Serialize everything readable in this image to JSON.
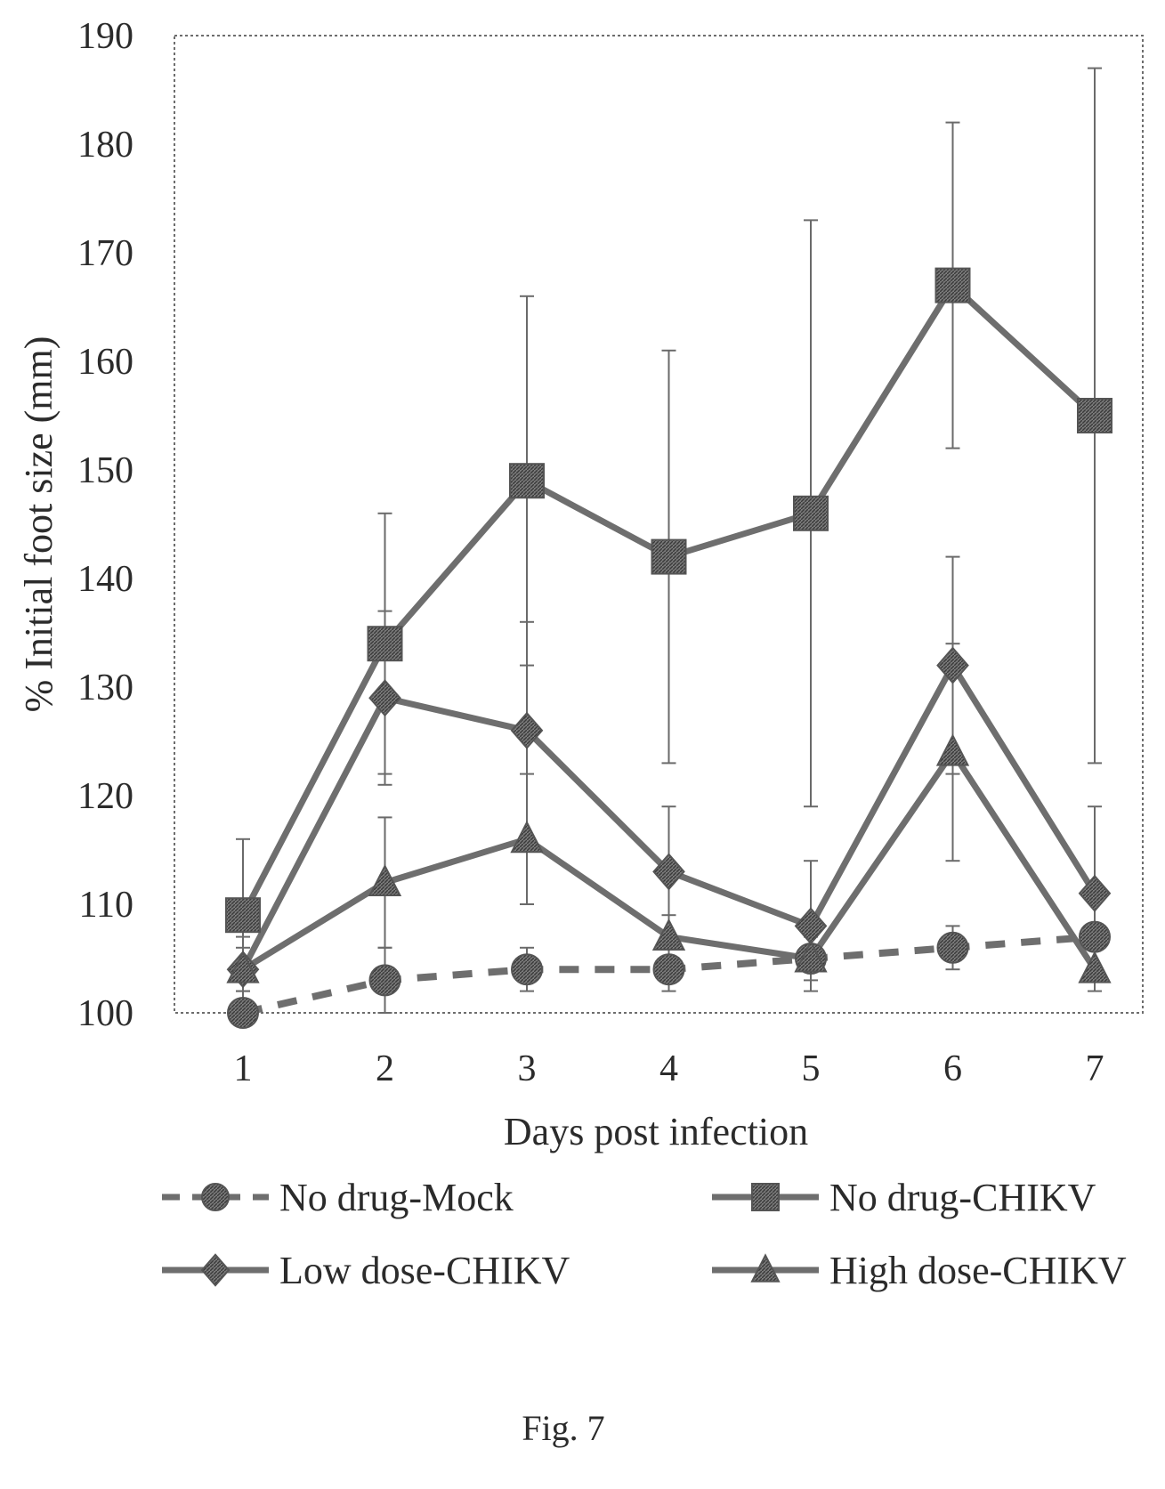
{
  "chart_data": {
    "type": "line",
    "xlabel": "Days post infection",
    "ylabel": "% Initial foot size (mm)",
    "x": [
      1,
      2,
      3,
      4,
      5,
      6,
      7
    ],
    "y_ticks": [
      100,
      110,
      120,
      130,
      140,
      150,
      160,
      170,
      180,
      190
    ],
    "ylim": [
      100,
      190
    ],
    "grid": false,
    "legend_position": "bottom",
    "series": [
      {
        "name": "No drug-Mock",
        "marker": "circle",
        "line": "dashed",
        "values": [
          100,
          103,
          104,
          104,
          105,
          106,
          107
        ],
        "errors": [
          0,
          3,
          2,
          2,
          1,
          2,
          1
        ]
      },
      {
        "name": "No drug-CHIKV",
        "marker": "square",
        "line": "solid",
        "values": [
          109,
          134,
          149,
          142,
          146,
          167,
          155
        ],
        "errors": [
          7,
          12,
          17,
          19,
          27,
          15,
          32
        ]
      },
      {
        "name": "Low dose-CHIKV",
        "marker": "diamond",
        "line": "solid",
        "values": [
          104,
          129,
          126,
          113,
          108,
          132,
          111
        ],
        "errors": [
          3,
          8,
          10,
          6,
          6,
          10,
          8
        ]
      },
      {
        "name": "High dose-CHIKV",
        "marker": "triangle",
        "line": "solid",
        "values": [
          104,
          112,
          116,
          107,
          105,
          124,
          104
        ],
        "errors": [
          2,
          6,
          6,
          2,
          2,
          10,
          2
        ]
      }
    ]
  },
  "caption": "Fig. 7"
}
